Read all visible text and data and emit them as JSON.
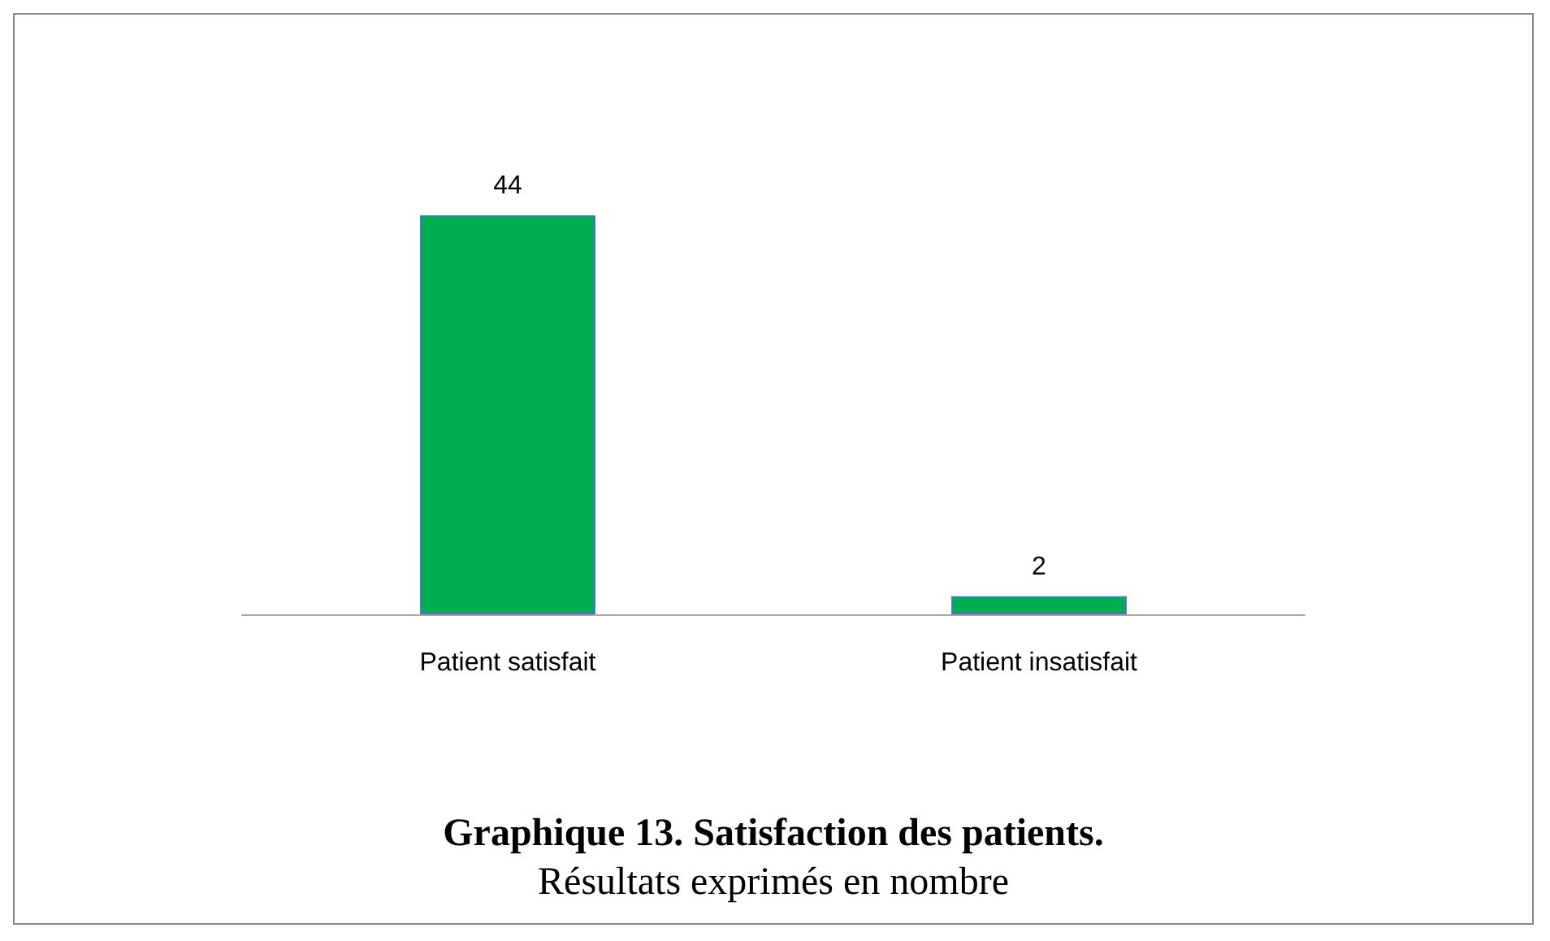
{
  "chart_data": {
    "type": "bar",
    "title": "Graphique 13. Satisfaction des patients.",
    "subtitle": "Résultats exprimés en nombre",
    "categories": [
      "Patient satisfait",
      "Patient insatisfait"
    ],
    "values": [
      44,
      2
    ],
    "color": "#00b050",
    "data_labels": true
  }
}
